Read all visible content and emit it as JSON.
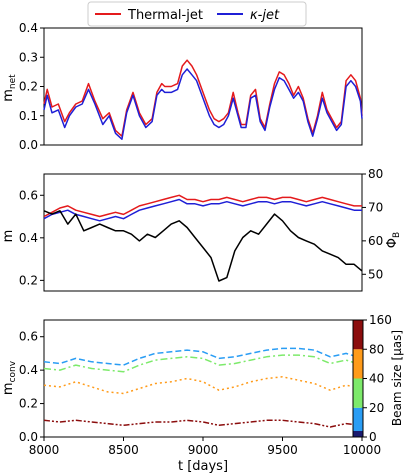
{
  "legend": [
    {
      "name": "Thermal-jet",
      "color": "#e41a1c"
    },
    {
      "name": "κ-jet",
      "color": "#1f1fd6"
    }
  ],
  "xlabel": "t [days]",
  "colorbar": {
    "label": "Beam size [μas]",
    "ticks": [
      "0",
      "20",
      "40",
      "80",
      "160"
    ],
    "colors": [
      "#1a1a6e",
      "#2a9df4",
      "#7dea6b",
      "#ff9b1a",
      "#8b0d0d"
    ]
  },
  "chart_data": [
    {
      "type": "line",
      "ylabel": "m_net",
      "xlim": [
        8000,
        10000
      ],
      "ylim": [
        0.0,
        0.4
      ],
      "yticks": [
        "0.0",
        "0.1",
        "0.2",
        "0.3",
        "0.4"
      ],
      "xticks": [],
      "x": [
        8000,
        8020,
        8050,
        8090,
        8130,
        8160,
        8200,
        8240,
        8280,
        8320,
        8370,
        8410,
        8450,
        8490,
        8520,
        8560,
        8600,
        8640,
        8680,
        8710,
        8740,
        8760,
        8800,
        8840,
        8870,
        8900,
        8930,
        8960,
        9000,
        9040,
        9070,
        9100,
        9130,
        9160,
        9190,
        9220,
        9240,
        9270,
        9300,
        9330,
        9360,
        9390,
        9420,
        9450,
        9480,
        9510,
        9540,
        9570,
        9600,
        9630,
        9660,
        9690,
        9720,
        9750,
        9780,
        9810,
        9840,
        9870,
        9900,
        9930,
        9960,
        9990,
        10000
      ],
      "series": [
        {
          "name": "Thermal-jet",
          "color": "#e41a1c",
          "values": [
            0.14,
            0.19,
            0.13,
            0.14,
            0.08,
            0.11,
            0.14,
            0.15,
            0.21,
            0.15,
            0.09,
            0.11,
            0.05,
            0.03,
            0.12,
            0.18,
            0.11,
            0.07,
            0.09,
            0.18,
            0.21,
            0.2,
            0.2,
            0.21,
            0.27,
            0.29,
            0.27,
            0.24,
            0.18,
            0.12,
            0.09,
            0.08,
            0.09,
            0.11,
            0.18,
            0.11,
            0.07,
            0.07,
            0.17,
            0.19,
            0.09,
            0.06,
            0.14,
            0.21,
            0.25,
            0.24,
            0.21,
            0.17,
            0.2,
            0.16,
            0.09,
            0.04,
            0.1,
            0.18,
            0.12,
            0.09,
            0.06,
            0.08,
            0.22,
            0.24,
            0.22,
            0.16,
            0.1
          ]
        },
        {
          "name": "κ-jet",
          "color": "#1f1fd6",
          "values": [
            0.12,
            0.17,
            0.11,
            0.12,
            0.06,
            0.1,
            0.13,
            0.14,
            0.19,
            0.14,
            0.07,
            0.1,
            0.04,
            0.02,
            0.11,
            0.17,
            0.1,
            0.06,
            0.08,
            0.17,
            0.19,
            0.18,
            0.18,
            0.19,
            0.24,
            0.26,
            0.24,
            0.22,
            0.16,
            0.1,
            0.07,
            0.06,
            0.07,
            0.1,
            0.16,
            0.1,
            0.06,
            0.06,
            0.16,
            0.17,
            0.08,
            0.05,
            0.13,
            0.19,
            0.23,
            0.22,
            0.19,
            0.16,
            0.18,
            0.15,
            0.08,
            0.03,
            0.09,
            0.16,
            0.11,
            0.08,
            0.05,
            0.07,
            0.2,
            0.22,
            0.2,
            0.15,
            0.09
          ]
        }
      ]
    },
    {
      "type": "line",
      "ylabel": "m",
      "ylabel_right": "Φ_B",
      "xlim": [
        8000,
        10000
      ],
      "ylim": [
        0.15,
        0.7
      ],
      "ylim_right": [
        45,
        80
      ],
      "yticks": [
        "0.2",
        "0.4",
        "0.6"
      ],
      "yticks_right": [
        "50",
        "60",
        "70",
        "80"
      ],
      "xticks": [],
      "x": [
        8000,
        8050,
        8100,
        8150,
        8200,
        8250,
        8300,
        8350,
        8400,
        8450,
        8500,
        8550,
        8600,
        8650,
        8700,
        8750,
        8800,
        8850,
        8900,
        8950,
        9000,
        9050,
        9100,
        9150,
        9200,
        9250,
        9300,
        9350,
        9400,
        9450,
        9500,
        9550,
        9600,
        9650,
        9700,
        9750,
        9800,
        9850,
        9900,
        9950,
        10000
      ],
      "series": [
        {
          "name": "Thermal-jet",
          "axis": "left",
          "color": "#e41a1c",
          "values": [
            0.5,
            0.52,
            0.54,
            0.55,
            0.53,
            0.52,
            0.51,
            0.5,
            0.51,
            0.52,
            0.51,
            0.53,
            0.55,
            0.56,
            0.57,
            0.58,
            0.59,
            0.6,
            0.58,
            0.58,
            0.57,
            0.58,
            0.58,
            0.59,
            0.58,
            0.57,
            0.58,
            0.59,
            0.59,
            0.58,
            0.59,
            0.59,
            0.58,
            0.57,
            0.58,
            0.59,
            0.58,
            0.57,
            0.56,
            0.55,
            0.55
          ]
        },
        {
          "name": "κ-jet",
          "axis": "left",
          "color": "#1f1fd6",
          "values": [
            0.49,
            0.51,
            0.52,
            0.53,
            0.51,
            0.5,
            0.49,
            0.48,
            0.49,
            0.5,
            0.49,
            0.51,
            0.53,
            0.54,
            0.55,
            0.56,
            0.57,
            0.58,
            0.56,
            0.56,
            0.55,
            0.56,
            0.56,
            0.57,
            0.56,
            0.55,
            0.56,
            0.57,
            0.57,
            0.56,
            0.57,
            0.57,
            0.56,
            0.55,
            0.56,
            0.57,
            0.56,
            0.55,
            0.54,
            0.53,
            0.53
          ]
        },
        {
          "name": "Φ_B",
          "axis": "right",
          "color": "#000000",
          "values": [
            69,
            68,
            69,
            65,
            68,
            63,
            64,
            65,
            64,
            63,
            63,
            62,
            60,
            62,
            61,
            63,
            65,
            66,
            64,
            61,
            58,
            55,
            48,
            49,
            57,
            61,
            63,
            62,
            65,
            68,
            66,
            63,
            61,
            60,
            59,
            57,
            56,
            55,
            53,
            53,
            51
          ]
        }
      ]
    },
    {
      "type": "line",
      "ylabel": "m_conv",
      "xlabel": "t [days]",
      "xlim": [
        8000,
        10000
      ],
      "ylim": [
        0.0,
        0.7
      ],
      "yticks": [
        "0.0",
        "0.2",
        "0.4",
        "0.6"
      ],
      "xticks": [
        "8000",
        "8500",
        "9000",
        "9500",
        "10000"
      ],
      "x": [
        8000,
        8100,
        8200,
        8300,
        8400,
        8500,
        8600,
        8700,
        8800,
        8900,
        9000,
        9100,
        9200,
        9300,
        9400,
        9500,
        9600,
        9700,
        9800,
        9900,
        10000
      ],
      "series": [
        {
          "name": "20",
          "color": "#2a9df4",
          "dash": "dashed",
          "values": [
            0.45,
            0.44,
            0.47,
            0.45,
            0.44,
            0.43,
            0.47,
            0.5,
            0.51,
            0.52,
            0.51,
            0.47,
            0.48,
            0.5,
            0.52,
            0.53,
            0.53,
            0.52,
            0.48,
            0.5,
            0.47
          ]
        },
        {
          "name": "40",
          "color": "#7dea6b",
          "dash": "dashdot",
          "values": [
            0.41,
            0.4,
            0.43,
            0.41,
            0.4,
            0.39,
            0.43,
            0.46,
            0.47,
            0.48,
            0.47,
            0.43,
            0.44,
            0.46,
            0.48,
            0.49,
            0.49,
            0.48,
            0.44,
            0.46,
            0.43
          ]
        },
        {
          "name": "80",
          "color": "#ff9b1a",
          "dash": "dotted",
          "values": [
            0.31,
            0.3,
            0.33,
            0.3,
            0.27,
            0.26,
            0.29,
            0.32,
            0.33,
            0.35,
            0.33,
            0.28,
            0.3,
            0.33,
            0.35,
            0.36,
            0.34,
            0.32,
            0.28,
            0.31,
            0.29
          ]
        },
        {
          "name": "160",
          "color": "#8b0d0d",
          "dash": "dashdotdot",
          "values": [
            0.1,
            0.09,
            0.1,
            0.09,
            0.08,
            0.07,
            0.08,
            0.09,
            0.09,
            0.1,
            0.09,
            0.07,
            0.08,
            0.09,
            0.1,
            0.1,
            0.09,
            0.08,
            0.06,
            0.08,
            0.07
          ]
        }
      ]
    }
  ]
}
